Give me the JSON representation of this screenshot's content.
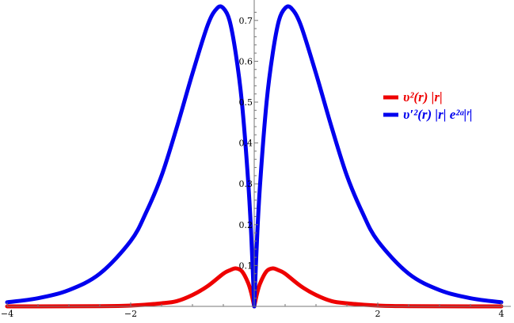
{
  "chart_data": {
    "type": "line",
    "xlim": [
      -4,
      4
    ],
    "ylim": [
      0,
      0.75
    ],
    "x_ticks": [
      "-4",
      "-2",
      "2",
      "4"
    ],
    "y_ticks": [
      "0.1",
      "0.2",
      "0.3",
      "0.4",
      "0.5",
      "0.6",
      "0.7"
    ],
    "grid": false,
    "legend_position": "right",
    "series": [
      {
        "name": "υ²(r) |r|",
        "color": "#ee0000",
        "x": [
          -4,
          -3.5,
          -3,
          -2.5,
          -2,
          -1.5,
          -1.25,
          -1,
          -0.75,
          -0.5,
          -0.4,
          -0.3,
          -0.2,
          -0.1,
          -0.05,
          0,
          0.05,
          0.1,
          0.2,
          0.3,
          0.4,
          0.5,
          0.75,
          1,
          1.25,
          1.5,
          2,
          2.5,
          3,
          3.5,
          4
        ],
        "y": [
          2e-05,
          6e-05,
          0.0002,
          0.0006,
          0.002,
          0.0075,
          0.013,
          0.028,
          0.05,
          0.08,
          0.088,
          0.093,
          0.086,
          0.058,
          0.034,
          0,
          0.034,
          0.058,
          0.086,
          0.093,
          0.088,
          0.08,
          0.05,
          0.028,
          0.013,
          0.0075,
          0.002,
          0.0006,
          0.0002,
          6e-05,
          2e-05
        ]
      },
      {
        "name": "υ′²(r) |r| e²ᵃ|ʳ|",
        "color": "#0000ee",
        "x": [
          -4,
          -3.5,
          -3,
          -2.5,
          -2,
          -1.75,
          -1.5,
          -1.25,
          -1,
          -0.75,
          -0.6,
          -0.5,
          -0.4,
          -0.3,
          -0.2,
          -0.1,
          -0.05,
          0,
          0.05,
          0.1,
          0.2,
          0.3,
          0.4,
          0.5,
          0.6,
          0.75,
          1,
          1.25,
          1.5,
          1.75,
          2,
          2.5,
          3,
          3.5,
          4
        ],
        "y": [
          0.01,
          0.02,
          0.04,
          0.08,
          0.16,
          0.23,
          0.32,
          0.44,
          0.57,
          0.69,
          0.73,
          0.73,
          0.7,
          0.62,
          0.5,
          0.31,
          0.18,
          0,
          0.18,
          0.31,
          0.5,
          0.62,
          0.7,
          0.73,
          0.73,
          0.69,
          0.57,
          0.44,
          0.32,
          0.23,
          0.16,
          0.08,
          0.04,
          0.02,
          0.01
        ]
      }
    ]
  }
}
